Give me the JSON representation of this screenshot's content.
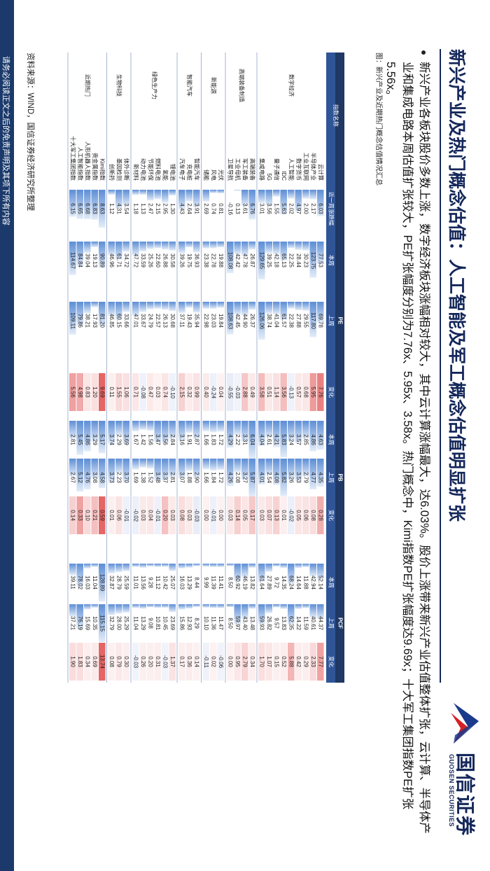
{
  "header": {
    "title": "新兴产业及热门概念估值：人工智能及军工概念估值明显扩张",
    "logo_name": "国信证券",
    "logo_sub": "GUOSEN SECURITIES"
  },
  "bullet": "新兴产业各板块股价多数上涨，数字经济板块涨幅相对较大，其中云计算涨幅最大，达6.03%。股价上涨带来新兴产业估值整体扩张，云计算、半导体产业和集成电路本周估值扩张较大，PE扩张幅度分别为7.76x、5.95x、3.58x。热门概念中，Kimi指数PE扩张幅度达9.69x；十大军工集团指数PE扩张5.56x。",
  "figure_caption": "图：新兴产业及近期热门概念估值情况汇总",
  "table": {
    "columns": {
      "name": "指数名称",
      "week": "近一周涨跌幅",
      "groups": [
        "PE",
        "PB",
        "PCF"
      ],
      "sub": [
        "本周",
        "上周",
        "变化"
      ]
    },
    "sections": [
      {
        "name": "数字经济",
        "rows": [
          [
            "云计算",
            "6.03",
            "77.53",
            "69.78",
            "7.76",
            "4.63",
            "4.35",
            "0.28",
            "52.14",
            "44.37",
            "7.77"
          ],
          [
            "半导体产业",
            "2.17",
            "123.75",
            "117.80",
            "5.95",
            "4.86",
            "4.77",
            "0.08",
            "42.94",
            "40.61",
            "2.33"
          ],
          [
            "工业互联网",
            "2.00",
            "30.23",
            "29.55",
            "0.68",
            "2.85",
            "2.79",
            "0.06",
            "11.88",
            "11.59",
            "0.29"
          ],
          [
            "数字货币",
            "4.97",
            "28.44",
            "27.88",
            "0.57",
            "3.57",
            "3.53",
            "0.05",
            "14.64",
            "14.22",
            "0.42"
          ],
          [
            "人工智能",
            "2.02",
            "22.25",
            "22.38",
            "-0.13",
            "3.24",
            "3.26",
            "-0.02",
            "68.24",
            "62.35",
            "5.88"
          ],
          [
            "IDC",
            "5.63",
            "65.13",
            "61.57",
            "3.56",
            "5.83",
            "5.82",
            "0.01",
            "14.35",
            "13.83",
            "0.52"
          ],
          [
            "量子通信",
            "1.55",
            "42.18",
            "41.04",
            "1.14",
            "4.21",
            "4.08",
            "0.13",
            "9.72",
            "9.57",
            "0.15"
          ],
          [
            "5G",
            "3.56",
            "39.25",
            "38.74",
            "0.51",
            "2.61",
            "2.54",
            "0.07",
            "27.89",
            "26.82",
            "1.07"
          ],
          [
            "集成电路",
            "3.01",
            "129.65",
            "126.06",
            "3.58",
            "4.04",
            "4.01",
            "0.03",
            "61.64",
            "59.93",
            "1.70"
          ]
        ]
      },
      {
        "name": "高端装备制造",
        "rows": [
          [
            "高端装备",
            "6.76",
            "26.87",
            "26.37",
            "0.49",
            "6.04",
            "5.87",
            "0.17",
            "13.82",
            "13.48",
            "0.34"
          ],
          [
            "军工装备",
            "3.61",
            "47.78",
            "44.90",
            "2.88",
            "3.31",
            "3.27",
            "0.05",
            "46.19",
            "43.40",
            "2.79"
          ],
          [
            "工业母机",
            "0.13",
            "42.42",
            "42.45",
            "-0.03",
            "2.22",
            "2.08",
            "0.14",
            "60.92",
            "59.97",
            "0.95"
          ],
          [
            "卫星导航",
            "-0.16",
            "108.08",
            "108.63",
            "-0.55",
            "4.29",
            "4.26",
            "0.03",
            "8.50",
            "8.50",
            "0.00"
          ]
        ]
      },
      {
        "name": "新能源",
        "rows": [
          [
            "光伏",
            "0.81",
            "19.88",
            "19.84",
            "0.04",
            "1.72",
            "1.72",
            "0.00",
            "11.41",
            "11.47",
            "-0.06"
          ],
          [
            "风电",
            "0.74",
            "22.78",
            "23.03",
            "-0.24",
            "1.83",
            "1.84",
            "-0.01",
            "11.39",
            "11.36",
            "0.02"
          ],
          [
            "储能",
            "2.69",
            "23.38",
            "22.98",
            "0.40",
            "1.66",
            "1.66",
            "0.00",
            "9.99",
            "10.10",
            "-0.11"
          ]
        ]
      },
      {
        "name": "智能汽车",
        "rows": [
          [
            "智能汽车",
            "3.91",
            "36.93",
            "35.94",
            "0.99",
            "2.87",
            "2.90",
            "-0.03",
            "8.44",
            "8.29",
            "0.14"
          ],
          [
            "充电桩",
            "2.64",
            "19.75",
            "19.43",
            "0.32",
            "1.91",
            "1.88",
            "0.03",
            "13.29",
            "12.93",
            "0.36"
          ],
          [
            "汽车电子",
            "4.43",
            "39.26",
            "37.11",
            "2.15",
            "3.16",
            "3.07",
            "0.08",
            "16.03",
            "15.86",
            "0.17"
          ]
        ]
      },
      {
        "name": "绿色生产力",
        "rows": [
          [
            "锂电池",
            "1.30",
            "30.58",
            "30.68",
            "-0.10",
            "2.84",
            "2.81",
            "0.03",
            "25.07",
            "23.69",
            "1.37"
          ],
          [
            "氢能",
            "2.95",
            "26.88",
            "26.13",
            "0.74",
            "3.56",
            "3.37",
            "0.20",
            "10.42",
            "10.45",
            "-0.03"
          ],
          [
            "燃料电池",
            "2.15",
            "22.60",
            "22.57",
            "0.03",
            "3.47",
            "3.48",
            "-0.01",
            "11.12",
            "10.81",
            "0.31"
          ],
          [
            "节能环保",
            "2.47",
            "25.26",
            "24.79",
            "0.47",
            "1.56",
            "1.52",
            "0.04",
            "9.28",
            "9.08",
            "0.20"
          ],
          [
            "动力电池",
            "1.13",
            "33.59",
            "33.67",
            "-0.08",
            "1.42",
            "1.38",
            "0.03",
            "13.56",
            "13.29",
            "0.26"
          ],
          [
            "新材料",
            "1.18",
            "47.72",
            "47.01",
            "0.71",
            "1.67",
            "1.69",
            "-0.02",
            "11.01",
            "11.04",
            "-0.03"
          ]
        ]
      },
      {
        "name": "生物科技",
        "rows": [
          [
            "体外诊断",
            "3.54",
            "34.72",
            "33.66",
            "1.06",
            "3.69",
            "3.70",
            "-0.01",
            "25.59",
            "25.29",
            "0.30"
          ],
          [
            "基因检测",
            "4.31",
            "61.71",
            "60.15",
            "1.55",
            "2.29",
            "2.23",
            "0.06",
            "28.79",
            "28.00",
            "0.79"
          ],
          [
            "创新药",
            "1.12",
            "46.96",
            "46.85",
            "0.11",
            "3.74",
            "3.73",
            "0.01",
            "32.87",
            "32.79",
            "0.08"
          ]
        ]
      },
      {
        "name": "近期热门",
        "rows": [
          [
            "Kimi指数",
            "8.63",
            "90.89",
            "81.20",
            "9.69",
            "5.17",
            "4.58",
            "0.59",
            "128.89",
            "115.15",
            "13.74"
          ],
          [
            "贵金属指数",
            "6.83",
            "19.13",
            "17.93",
            "1.20",
            "3.29",
            "3.08",
            "0.21",
            "11.04",
            "10.35",
            "0.69"
          ],
          [
            "人形机器人指数",
            "6.68",
            "39.04",
            "38.21",
            "0.83",
            "4.86",
            "4.76",
            "0.10",
            "16.03",
            "15.69",
            "0.34"
          ],
          [
            "人工智能指数",
            "6.65",
            "84.84",
            "79.86",
            "4.98",
            "5.45",
            "5.12",
            "0.33",
            "78.02",
            "76.19",
            "1.83"
          ],
          [
            "十大军工集团指数",
            "6.15",
            "114.67",
            "109.11",
            "5.56",
            "2.81",
            "2.67",
            "0.14",
            "39.11",
            "37.21",
            "1.90"
          ]
        ]
      }
    ]
  },
  "source": "资料来源：WIND，国信证券经济研究所整理",
  "disclaimer": "请务必阅读正文之后的免责声明及其项下所有内容"
}
